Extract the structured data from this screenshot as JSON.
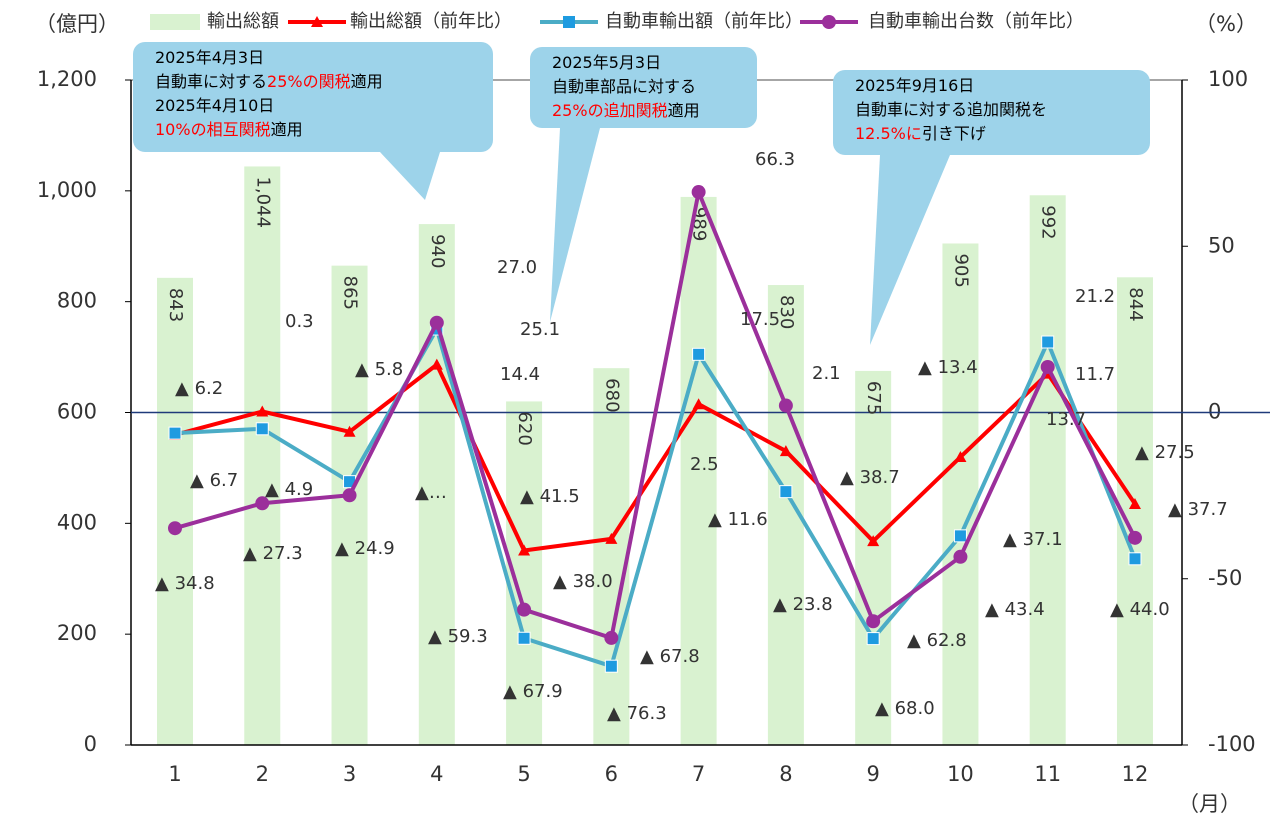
{
  "chart_data": {
    "type": "combo",
    "y_label": "（億円）",
    "y2_label": "（%）",
    "x_label": "（月）",
    "categories": [
      "1",
      "2",
      "3",
      "4",
      "5",
      "6",
      "7",
      "8",
      "9",
      "10",
      "11",
      "12"
    ],
    "ylim": [
      0,
      1200
    ],
    "yticks": [
      0,
      200,
      400,
      600,
      800,
      {
        "value": 1000,
        "label": "1,000"
      },
      {
        "value": 1200,
        "label": "1,200"
      }
    ],
    "y2lim": [
      -100,
      100
    ],
    "y2ticks": [
      -100,
      -50,
      0,
      50,
      100
    ],
    "series": [
      {
        "name": "輸出総額",
        "type": "bar",
        "color": "#d9f2d0",
        "values": [
          843,
          1044,
          865,
          940,
          620,
          680,
          989,
          830,
          675,
          905,
          992,
          844
        ],
        "value_labels": [
          "843",
          "1,044",
          "865",
          "940",
          "620",
          "680",
          "989",
          "830",
          "675",
          "905",
          "992",
          "844"
        ]
      },
      {
        "name": "輸出総額（前年比）",
        "type": "line",
        "axis": "y2",
        "color": "#ff0000",
        "marker": "triangle",
        "values": [
          -6.7,
          0.3,
          -5.8,
          14.4,
          -41.5,
          -38.0,
          2.5,
          -11.6,
          -38.7,
          -13.4,
          11.7,
          -27.5
        ],
        "value_labels": [
          "▲ 6.7",
          "0.3",
          "▲ 5.8",
          "14.4",
          "▲ 41.5",
          "▲ 38.0",
          "2.5",
          "▲ 11.6",
          "▲ 38.7",
          "▲ 13.4",
          "11.7",
          "▲ 27.5"
        ]
      },
      {
        "name": "自動車輸出額（前年比）",
        "type": "line",
        "axis": "y2",
        "color": "#4bacc6",
        "marker": "square",
        "values": [
          -6.2,
          -4.9,
          -20.8,
          25.1,
          -67.9,
          -76.3,
          17.5,
          -23.8,
          -68.0,
          -37.1,
          21.2,
          -44.0
        ],
        "value_labels": [
          "▲ 6.2",
          "▲ 4.9",
          null,
          "25.1",
          "▲ 67.9",
          "▲ 76.3",
          "17.5",
          "▲ 23.8",
          "▲ 68.0",
          "▲ 37.1",
          "21.2",
          "▲ 44.0"
        ]
      },
      {
        "name": "自動車輸出台数（前年比）",
        "type": "line",
        "axis": "y2",
        "color": "#9b2f9b",
        "marker": "circle",
        "values": [
          -34.8,
          -27.3,
          -24.9,
          27.0,
          -59.3,
          -67.8,
          66.3,
          2.1,
          -62.8,
          -43.4,
          13.7,
          -37.7
        ],
        "value_labels": [
          "▲ 34.8",
          "▲ 27.3",
          "▲ 24.9",
          "27.0",
          "▲ 59.3",
          "▲ 67.8",
          "66.3",
          "2.1",
          "▲ 62.8",
          "▲ 43.4",
          "13.7",
          "▲ 37.7"
        ]
      }
    ],
    "annotations": [
      "▲…"
    ],
    "callouts": [
      {
        "lines": [
          [
            {
              "text": "2025年4月3日"
            }
          ],
          [
            {
              "text": "自動車に対する"
            },
            {
              "text": "25%の関税",
              "color": "#ff0000"
            },
            {
              "text": "適用"
            }
          ],
          [
            {
              "text": "2025年4月10日"
            }
          ],
          [
            {
              "text": "10%の相互関税",
              "color": "#ff0000"
            },
            {
              "text": "適用"
            }
          ]
        ]
      },
      {
        "lines": [
          [
            {
              "text": "2025年5月3日"
            }
          ],
          [
            {
              "text": "自動車部品に対する"
            }
          ],
          [
            {
              "text": "25%の追加関税",
              "color": "#ff0000"
            },
            {
              "text": "適用"
            }
          ]
        ]
      },
      {
        "lines": [
          [
            {
              "text": "2025年9月16日"
            }
          ],
          [
            {
              "text": "自動車に対する追加関税を"
            }
          ],
          [
            {
              "text": "12.5%に",
              "color": "#ff0000"
            },
            {
              "text": "引き下げ"
            }
          ]
        ]
      }
    ],
    "callout_color": "#9dd3ea"
  }
}
